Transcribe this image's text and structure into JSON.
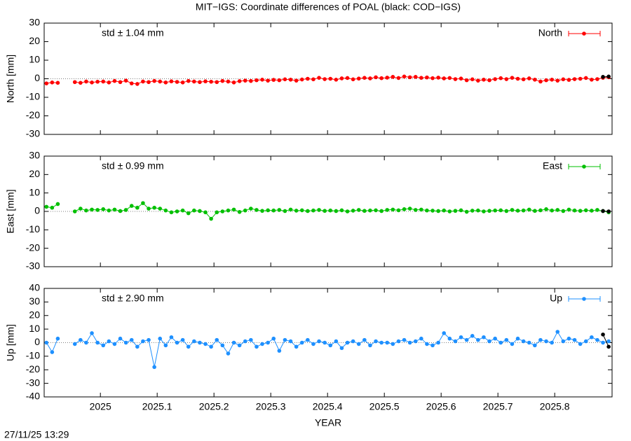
{
  "figure": {
    "title": "MIT−IGS: Coordinate differences of POAL (black: COD−IGS)",
    "xlabel": "YEAR",
    "timestamp": "27/11/25 13:29"
  },
  "chart_data": [
    {
      "type": "line",
      "ylabel": "North [mm]",
      "annotation": "std ± 1.04 mm",
      "legend": "upper right",
      "zero_line": true,
      "xlim": [
        2024.901,
        2025.901
      ],
      "xticks": [
        2025,
        2025.1,
        2025.2,
        2025.3,
        2025.4,
        2025.5,
        2025.6,
        2025.7,
        2025.8
      ],
      "ylim": [
        -30,
        30
      ],
      "yticks": [
        -30,
        -20,
        -10,
        0,
        10,
        20,
        30
      ],
      "x": [
        2024.905,
        2024.915,
        2024.925,
        2024.935,
        2024.945,
        2024.955,
        2024.965,
        2024.975,
        2024.985,
        2024.995,
        2025.005,
        2025.015,
        2025.025,
        2025.035,
        2025.045,
        2025.055,
        2025.065,
        2025.075,
        2025.085,
        2025.095,
        2025.105,
        2025.115,
        2025.125,
        2025.135,
        2025.145,
        2025.155,
        2025.165,
        2025.175,
        2025.185,
        2025.195,
        2025.205,
        2025.215,
        2025.225,
        2025.235,
        2025.245,
        2025.255,
        2025.265,
        2025.275,
        2025.285,
        2025.295,
        2025.305,
        2025.315,
        2025.325,
        2025.335,
        2025.345,
        2025.355,
        2025.365,
        2025.375,
        2025.385,
        2025.395,
        2025.405,
        2025.415,
        2025.425,
        2025.435,
        2025.445,
        2025.455,
        2025.465,
        2025.475,
        2025.485,
        2025.495,
        2025.505,
        2025.515,
        2025.525,
        2025.535,
        2025.545,
        2025.555,
        2025.565,
        2025.575,
        2025.585,
        2025.595,
        2025.605,
        2025.615,
        2025.625,
        2025.635,
        2025.645,
        2025.655,
        2025.665,
        2025.675,
        2025.685,
        2025.695,
        2025.705,
        2025.715,
        2025.725,
        2025.735,
        2025.745,
        2025.755,
        2025.765,
        2025.775,
        2025.785,
        2025.795,
        2025.805,
        2025.815,
        2025.825,
        2025.835,
        2025.845,
        2025.855,
        2025.865,
        2025.875,
        2025.885,
        2025.895
      ],
      "series": [
        {
          "name": "North",
          "color": "#ff0000",
          "values": [
            -2.5,
            -2,
            -2.2,
            null,
            null,
            -1.8,
            -2.2,
            -1.5,
            -2,
            -1.6,
            -1.5,
            -2,
            -1.2,
            -1.8,
            -1,
            -2.5,
            -2.8,
            -1.5,
            -1.8,
            -1.2,
            -1.5,
            -2,
            -1.4,
            -1.7,
            -2,
            -1.2,
            -1.5,
            -1.8,
            -1.4,
            -1.6,
            -1.8,
            -1.2,
            -1.5,
            -2,
            -1.3,
            -1,
            -1.2,
            -0.8,
            -0.5,
            -1,
            -0.6,
            -0.8,
            -0.3,
            -0.5,
            -1,
            -0.4,
            0,
            -0.3,
            0.5,
            -0.2,
            0,
            -0.5,
            0.2,
            0.4,
            -0.3,
            0.1,
            0.5,
            0.2,
            0.8,
            0.3,
            0.6,
            1,
            0.4,
            1.2,
            0.8,
            1,
            0.5,
            0.7,
            0.3,
            0.6,
            0.2,
            0.4,
            -0.2,
            0.1,
            -0.8,
            -0.3,
            -1,
            -0.5,
            -0.8,
            -0.2,
            0.3,
            -0.2,
            0.5,
            0,
            -0.3,
            0.2,
            -0.5,
            -1.5,
            -0.8,
            -0.5,
            -1,
            -0.3,
            -0.6,
            -0.2,
            0,
            0.4,
            -0.5,
            -0.2,
            0.5,
            0.8
          ]
        },
        {
          "color": "#000000",
          "x": [
            2025.885,
            2025.895
          ],
          "values": [
            1,
            1.2
          ]
        }
      ]
    },
    {
      "type": "line",
      "ylabel": "East [mm]",
      "annotation": "std ± 0.99 mm",
      "legend": "upper right",
      "zero_line": true,
      "xlim": [
        2024.901,
        2025.901
      ],
      "xticks": [
        2025,
        2025.1,
        2025.2,
        2025.3,
        2025.4,
        2025.5,
        2025.6,
        2025.7,
        2025.8
      ],
      "ylim": [
        -30,
        30
      ],
      "yticks": [
        -30,
        -20,
        -10,
        0,
        10,
        20,
        30
      ],
      "x": [
        2024.905,
        2024.915,
        2024.925,
        2024.935,
        2024.945,
        2024.955,
        2024.965,
        2024.975,
        2024.985,
        2024.995,
        2025.005,
        2025.015,
        2025.025,
        2025.035,
        2025.045,
        2025.055,
        2025.065,
        2025.075,
        2025.085,
        2025.095,
        2025.105,
        2025.115,
        2025.125,
        2025.135,
        2025.145,
        2025.155,
        2025.165,
        2025.175,
        2025.185,
        2025.195,
        2025.205,
        2025.215,
        2025.225,
        2025.235,
        2025.245,
        2025.255,
        2025.265,
        2025.275,
        2025.285,
        2025.295,
        2025.305,
        2025.315,
        2025.325,
        2025.335,
        2025.345,
        2025.355,
        2025.365,
        2025.375,
        2025.385,
        2025.395,
        2025.405,
        2025.415,
        2025.425,
        2025.435,
        2025.445,
        2025.455,
        2025.465,
        2025.475,
        2025.485,
        2025.495,
        2025.505,
        2025.515,
        2025.525,
        2025.535,
        2025.545,
        2025.555,
        2025.565,
        2025.575,
        2025.585,
        2025.595,
        2025.605,
        2025.615,
        2025.625,
        2025.635,
        2025.645,
        2025.655,
        2025.665,
        2025.675,
        2025.685,
        2025.695,
        2025.705,
        2025.715,
        2025.725,
        2025.735,
        2025.745,
        2025.755,
        2025.765,
        2025.775,
        2025.785,
        2025.795,
        2025.805,
        2025.815,
        2025.825,
        2025.835,
        2025.845,
        2025.855,
        2025.865,
        2025.875,
        2025.885,
        2025.895
      ],
      "series": [
        {
          "name": "East",
          "color": "#00c000",
          "values": [
            2.5,
            2,
            4,
            null,
            null,
            0,
            1.5,
            0.5,
            1,
            0.8,
            1.2,
            0.5,
            1,
            0.2,
            0.8,
            3,
            2,
            4.5,
            1.5,
            2,
            1.5,
            0.5,
            -0.5,
            0,
            0.5,
            -1,
            0.5,
            0.2,
            -0.5,
            -4,
            -0.5,
            0,
            0.5,
            1,
            -0.3,
            0.5,
            1.5,
            0.8,
            0.3,
            0.6,
            0.5,
            0.8,
            0.2,
            1,
            0.4,
            0.6,
            0.2,
            0.5,
            0.8,
            0.3,
            0.5,
            0.2,
            0.6,
            0,
            0.4,
            0.8,
            0.3,
            0.5,
            0.6,
            0.2,
            0.8,
            1,
            0.6,
            1.2,
            1.5,
            0.8,
            1,
            0.5,
            0.4,
            0.2,
            0.5,
            0,
            0.3,
            0.6,
            -0.2,
            0.4,
            0.5,
            0,
            0.3,
            0.5,
            0.6,
            0.2,
            0.8,
            0.4,
            0.5,
            1,
            0.3,
            0.6,
            1.2,
            0.5,
            0.8,
            0.2,
            1,
            0.5,
            0.3,
            0.6,
            0.4,
            0.8,
            0.2,
            -0.5
          ]
        },
        {
          "color": "#000000",
          "x": [
            2025.885,
            2025.895
          ],
          "values": [
            0.2,
            0
          ]
        }
      ]
    },
    {
      "type": "line",
      "ylabel": "Up [mm]",
      "annotation": "std ± 2.90 mm",
      "legend": "upper right",
      "zero_line": true,
      "xlim": [
        2024.901,
        2025.901
      ],
      "xticks": [
        2025,
        2025.1,
        2025.2,
        2025.3,
        2025.4,
        2025.5,
        2025.6,
        2025.7,
        2025.8
      ],
      "ylim": [
        -40,
        40
      ],
      "yticks": [
        -40,
        -30,
        -20,
        -10,
        0,
        10,
        20,
        30,
        40
      ],
      "x": [
        2024.905,
        2024.915,
        2024.925,
        2024.935,
        2024.945,
        2024.955,
        2024.965,
        2024.975,
        2024.985,
        2024.995,
        2025.005,
        2025.015,
        2025.025,
        2025.035,
        2025.045,
        2025.055,
        2025.065,
        2025.075,
        2025.085,
        2025.095,
        2025.105,
        2025.115,
        2025.125,
        2025.135,
        2025.145,
        2025.155,
        2025.165,
        2025.175,
        2025.185,
        2025.195,
        2025.205,
        2025.215,
        2025.225,
        2025.235,
        2025.245,
        2025.255,
        2025.265,
        2025.275,
        2025.285,
        2025.295,
        2025.305,
        2025.315,
        2025.325,
        2025.335,
        2025.345,
        2025.355,
        2025.365,
        2025.375,
        2025.385,
        2025.395,
        2025.405,
        2025.415,
        2025.425,
        2025.435,
        2025.445,
        2025.455,
        2025.465,
        2025.475,
        2025.485,
        2025.495,
        2025.505,
        2025.515,
        2025.525,
        2025.535,
        2025.545,
        2025.555,
        2025.565,
        2025.575,
        2025.585,
        2025.595,
        2025.605,
        2025.615,
        2025.625,
        2025.635,
        2025.645,
        2025.655,
        2025.665,
        2025.675,
        2025.685,
        2025.695,
        2025.705,
        2025.715,
        2025.725,
        2025.735,
        2025.745,
        2025.755,
        2025.765,
        2025.775,
        2025.785,
        2025.795,
        2025.805,
        2025.815,
        2025.825,
        2025.835,
        2025.845,
        2025.855,
        2025.865,
        2025.875,
        2025.885,
        2025.895
      ],
      "series": [
        {
          "name": "Up",
          "color": "#1e90ff",
          "values": [
            0,
            -7,
            3,
            null,
            null,
            -1,
            2,
            0,
            7,
            0,
            -2,
            1,
            -1,
            3,
            0,
            2,
            -3,
            1,
            2,
            -18,
            3,
            -2,
            4,
            0,
            2,
            -3,
            1,
            0,
            -1,
            -3,
            2,
            -2,
            -8,
            0,
            -2,
            1,
            2,
            -3,
            -1,
            0,
            3,
            -6,
            2,
            1,
            -3,
            0,
            2,
            -1,
            1,
            0,
            -2,
            1,
            -4,
            0,
            1,
            -1,
            2,
            -2,
            1,
            0,
            0,
            -1,
            1,
            2,
            0,
            1,
            3,
            -1,
            -2,
            0,
            7,
            3,
            1,
            4,
            2,
            5,
            2,
            4,
            1,
            3,
            0,
            2,
            -1,
            3,
            1,
            0,
            -2,
            2,
            1,
            0,
            8,
            1,
            3,
            2,
            -1,
            1,
            4,
            2,
            0,
            1
          ]
        },
        {
          "color": "#000000",
          "x": [
            2025.885,
            2025.895
          ],
          "values": [
            6,
            -3
          ]
        }
      ]
    }
  ]
}
